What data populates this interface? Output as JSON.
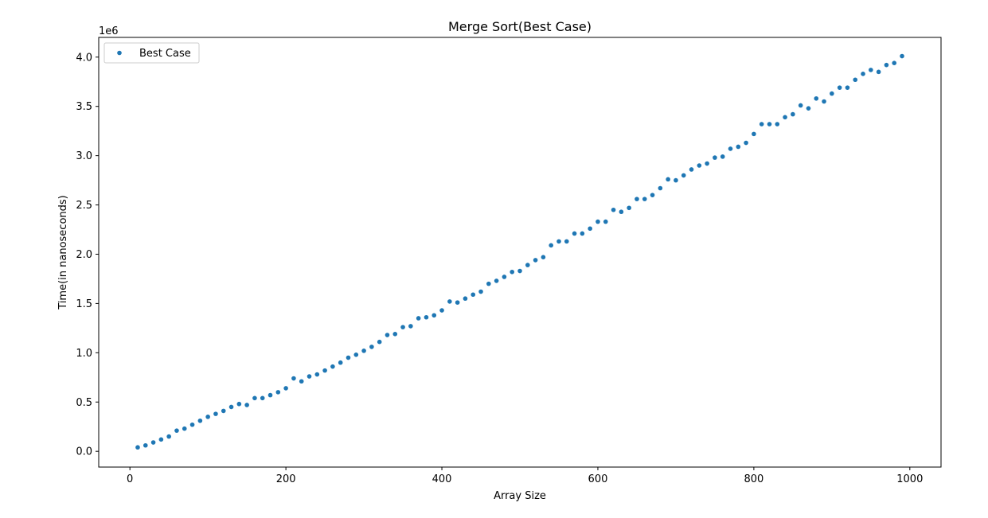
{
  "chart_data": {
    "type": "scatter",
    "title": "Merge Sort(Best Case)",
    "xlabel": "Array Size",
    "ylabel": "Time(in nanoseconds)",
    "y_offset_label": "1e6",
    "xlim": [
      -40,
      1040
    ],
    "ylim": [
      -0.16,
      4.2
    ],
    "x_ticks": [
      0,
      200,
      400,
      600,
      800,
      1000
    ],
    "x_tick_labels": [
      "0",
      "200",
      "400",
      "600",
      "800",
      "1000"
    ],
    "y_ticks": [
      0.0,
      0.5,
      1.0,
      1.5,
      2.0,
      2.5,
      3.0,
      3.5,
      4.0
    ],
    "y_tick_labels": [
      "0.0",
      "0.5",
      "1.0",
      "1.5",
      "2.0",
      "2.5",
      "3.0",
      "3.5",
      "4.0"
    ],
    "y_unit_multiplier": 1000000,
    "grid": false,
    "legend_position": "top-left",
    "series": [
      {
        "name": "Best Case",
        "color": "#1f77b4",
        "x": [
          10,
          20,
          30,
          40,
          50,
          60,
          70,
          80,
          90,
          100,
          110,
          120,
          130,
          140,
          150,
          160,
          170,
          180,
          190,
          200,
          210,
          220,
          230,
          240,
          250,
          260,
          270,
          280,
          290,
          300,
          310,
          320,
          330,
          340,
          350,
          360,
          370,
          380,
          390,
          400,
          410,
          420,
          430,
          440,
          450,
          460,
          470,
          480,
          490,
          500,
          510,
          520,
          530,
          540,
          550,
          560,
          570,
          580,
          590,
          600,
          610,
          620,
          630,
          640,
          650,
          660,
          670,
          680,
          690,
          700,
          710,
          720,
          730,
          740,
          750,
          760,
          770,
          780,
          790,
          800,
          810,
          820,
          830,
          840,
          850,
          860,
          870,
          880,
          890,
          900,
          910,
          920,
          930,
          940,
          950,
          960,
          970,
          980,
          990
        ],
        "y": [
          0.04,
          0.06,
          0.09,
          0.12,
          0.15,
          0.21,
          0.23,
          0.27,
          0.31,
          0.35,
          0.38,
          0.41,
          0.45,
          0.48,
          0.47,
          0.54,
          0.54,
          0.57,
          0.6,
          0.64,
          0.74,
          0.71,
          0.76,
          0.78,
          0.82,
          0.86,
          0.9,
          0.95,
          0.98,
          1.02,
          1.06,
          1.11,
          1.18,
          1.19,
          1.26,
          1.27,
          1.35,
          1.36,
          1.38,
          1.43,
          1.52,
          1.51,
          1.55,
          1.59,
          1.62,
          1.7,
          1.73,
          1.77,
          1.82,
          1.83,
          1.89,
          1.94,
          1.97,
          2.09,
          2.13,
          2.13,
          2.21,
          2.21,
          2.26,
          2.33,
          2.33,
          2.45,
          2.43,
          2.47,
          2.56,
          2.56,
          2.6,
          2.67,
          2.76,
          2.75,
          2.8,
          2.86,
          2.9,
          2.92,
          2.98,
          2.99,
          3.07,
          3.09,
          3.13,
          3.22,
          3.32,
          3.32,
          3.32,
          3.39,
          3.42,
          3.51,
          3.48,
          3.58,
          3.55,
          3.63,
          3.69,
          3.69,
          3.77,
          3.83,
          3.87,
          3.85,
          3.92,
          3.94,
          4.01
        ]
      }
    ]
  }
}
